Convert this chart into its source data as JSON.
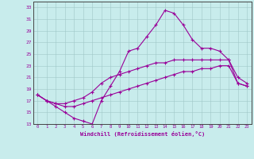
{
  "xlabel": "Windchill (Refroidissement éolien,°C)",
  "background_color": "#c8ecec",
  "line_color": "#990099",
  "grid_color": "#b0d0d0",
  "ylim": [
    13,
    34
  ],
  "xlim": [
    -0.5,
    23.5
  ],
  "yticks": [
    13,
    15,
    17,
    19,
    21,
    23,
    25,
    27,
    29,
    31,
    33
  ],
  "xticks": [
    0,
    1,
    2,
    3,
    4,
    5,
    6,
    7,
    8,
    9,
    10,
    11,
    12,
    13,
    14,
    15,
    16,
    17,
    18,
    19,
    20,
    21,
    22,
    23
  ],
  "line1_x": [
    0,
    1,
    2,
    3,
    4,
    5,
    6,
    7,
    8,
    9,
    10,
    11,
    12,
    13,
    14,
    15,
    16,
    17,
    18,
    19,
    20,
    21,
    22,
    23
  ],
  "line1_y": [
    18,
    17,
    16,
    15,
    14,
    13.5,
    13,
    17,
    19.5,
    22,
    25.5,
    26,
    28,
    30,
    32.5,
    32,
    30,
    27.5,
    26,
    26,
    25.5,
    24,
    20,
    19.5
  ],
  "line2_x": [
    0,
    1,
    2,
    3,
    4,
    5,
    6,
    7,
    8,
    9,
    10,
    11,
    12,
    13,
    14,
    15,
    16,
    17,
    18,
    19,
    20,
    21,
    22,
    23
  ],
  "line2_y": [
    18,
    17,
    16.5,
    16.5,
    17,
    17.5,
    18.5,
    20,
    21,
    21.5,
    22,
    22.5,
    23,
    23.5,
    23.5,
    24,
    24,
    24,
    24,
    24,
    24,
    24,
    21,
    20
  ],
  "line3_x": [
    0,
    1,
    2,
    3,
    4,
    5,
    6,
    7,
    8,
    9,
    10,
    11,
    12,
    13,
    14,
    15,
    16,
    17,
    18,
    19,
    20,
    21,
    22,
    23
  ],
  "line3_y": [
    18,
    17,
    16.5,
    16,
    16,
    16.5,
    17,
    17.5,
    18,
    18.5,
    19,
    19.5,
    20,
    20.5,
    21,
    21.5,
    22,
    22,
    22.5,
    22.5,
    23,
    23,
    20,
    19.5
  ]
}
